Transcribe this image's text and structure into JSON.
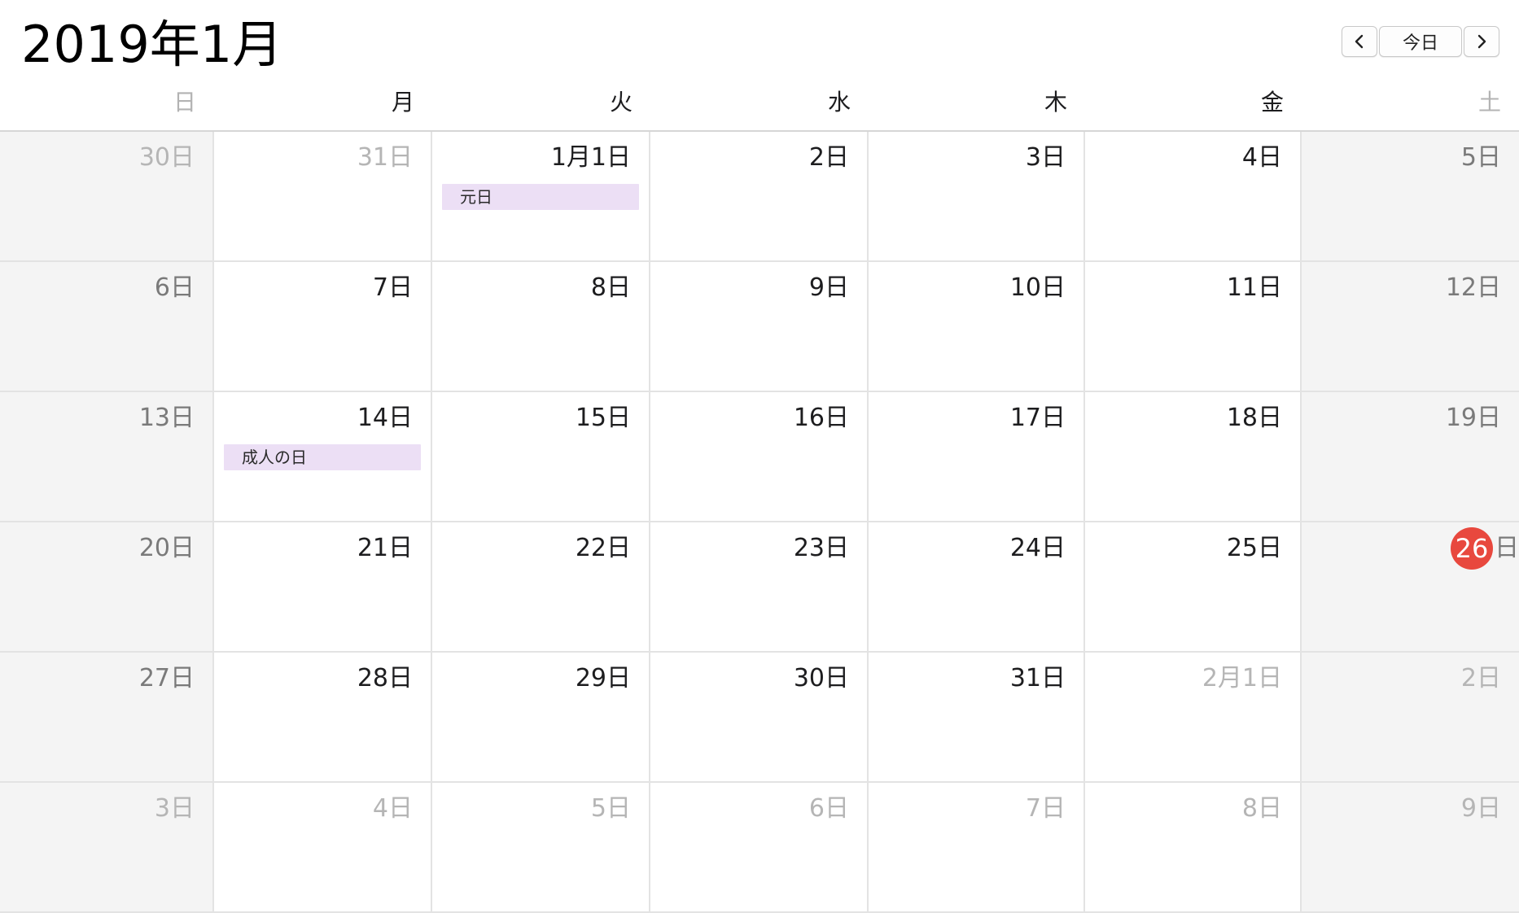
{
  "header": {
    "title": "2019年1月",
    "prev_icon": "chevron-left-icon",
    "today_label": "今日",
    "next_icon": "chevron-right-icon"
  },
  "weekdays": [
    "日",
    "月",
    "火",
    "水",
    "木",
    "金",
    "土"
  ],
  "colors": {
    "today_badge": "#e8483e",
    "holiday_event": "#ecdff5",
    "weekend_bg": "#f4f4f4"
  },
  "weeks": [
    [
      {
        "label": "30日",
        "other": true
      },
      {
        "label": "31日",
        "other": true
      },
      {
        "label": "1月1日",
        "events": [
          "元日"
        ]
      },
      {
        "label": "2日"
      },
      {
        "label": "3日"
      },
      {
        "label": "4日"
      },
      {
        "label": "5日"
      }
    ],
    [
      {
        "label": "6日"
      },
      {
        "label": "7日"
      },
      {
        "label": "8日"
      },
      {
        "label": "9日"
      },
      {
        "label": "10日"
      },
      {
        "label": "11日"
      },
      {
        "label": "12日"
      }
    ],
    [
      {
        "label": "13日"
      },
      {
        "label": "14日",
        "events": [
          "成人の日"
        ]
      },
      {
        "label": "15日"
      },
      {
        "label": "16日"
      },
      {
        "label": "17日"
      },
      {
        "label": "18日"
      },
      {
        "label": "19日"
      }
    ],
    [
      {
        "label": "20日"
      },
      {
        "label": "21日"
      },
      {
        "label": "22日"
      },
      {
        "label": "23日"
      },
      {
        "label": "24日"
      },
      {
        "label": "25日"
      },
      {
        "label": "26日",
        "today": true,
        "today_num": "26",
        "today_suffix": "日"
      }
    ],
    [
      {
        "label": "27日"
      },
      {
        "label": "28日"
      },
      {
        "label": "29日"
      },
      {
        "label": "30日"
      },
      {
        "label": "31日"
      },
      {
        "label": "2月1日",
        "other": true
      },
      {
        "label": "2日",
        "other": true
      }
    ],
    [
      {
        "label": "3日",
        "other": true
      },
      {
        "label": "4日",
        "other": true
      },
      {
        "label": "5日",
        "other": true
      },
      {
        "label": "6日",
        "other": true
      },
      {
        "label": "7日",
        "other": true
      },
      {
        "label": "8日",
        "other": true
      },
      {
        "label": "9日",
        "other": true
      }
    ]
  ]
}
